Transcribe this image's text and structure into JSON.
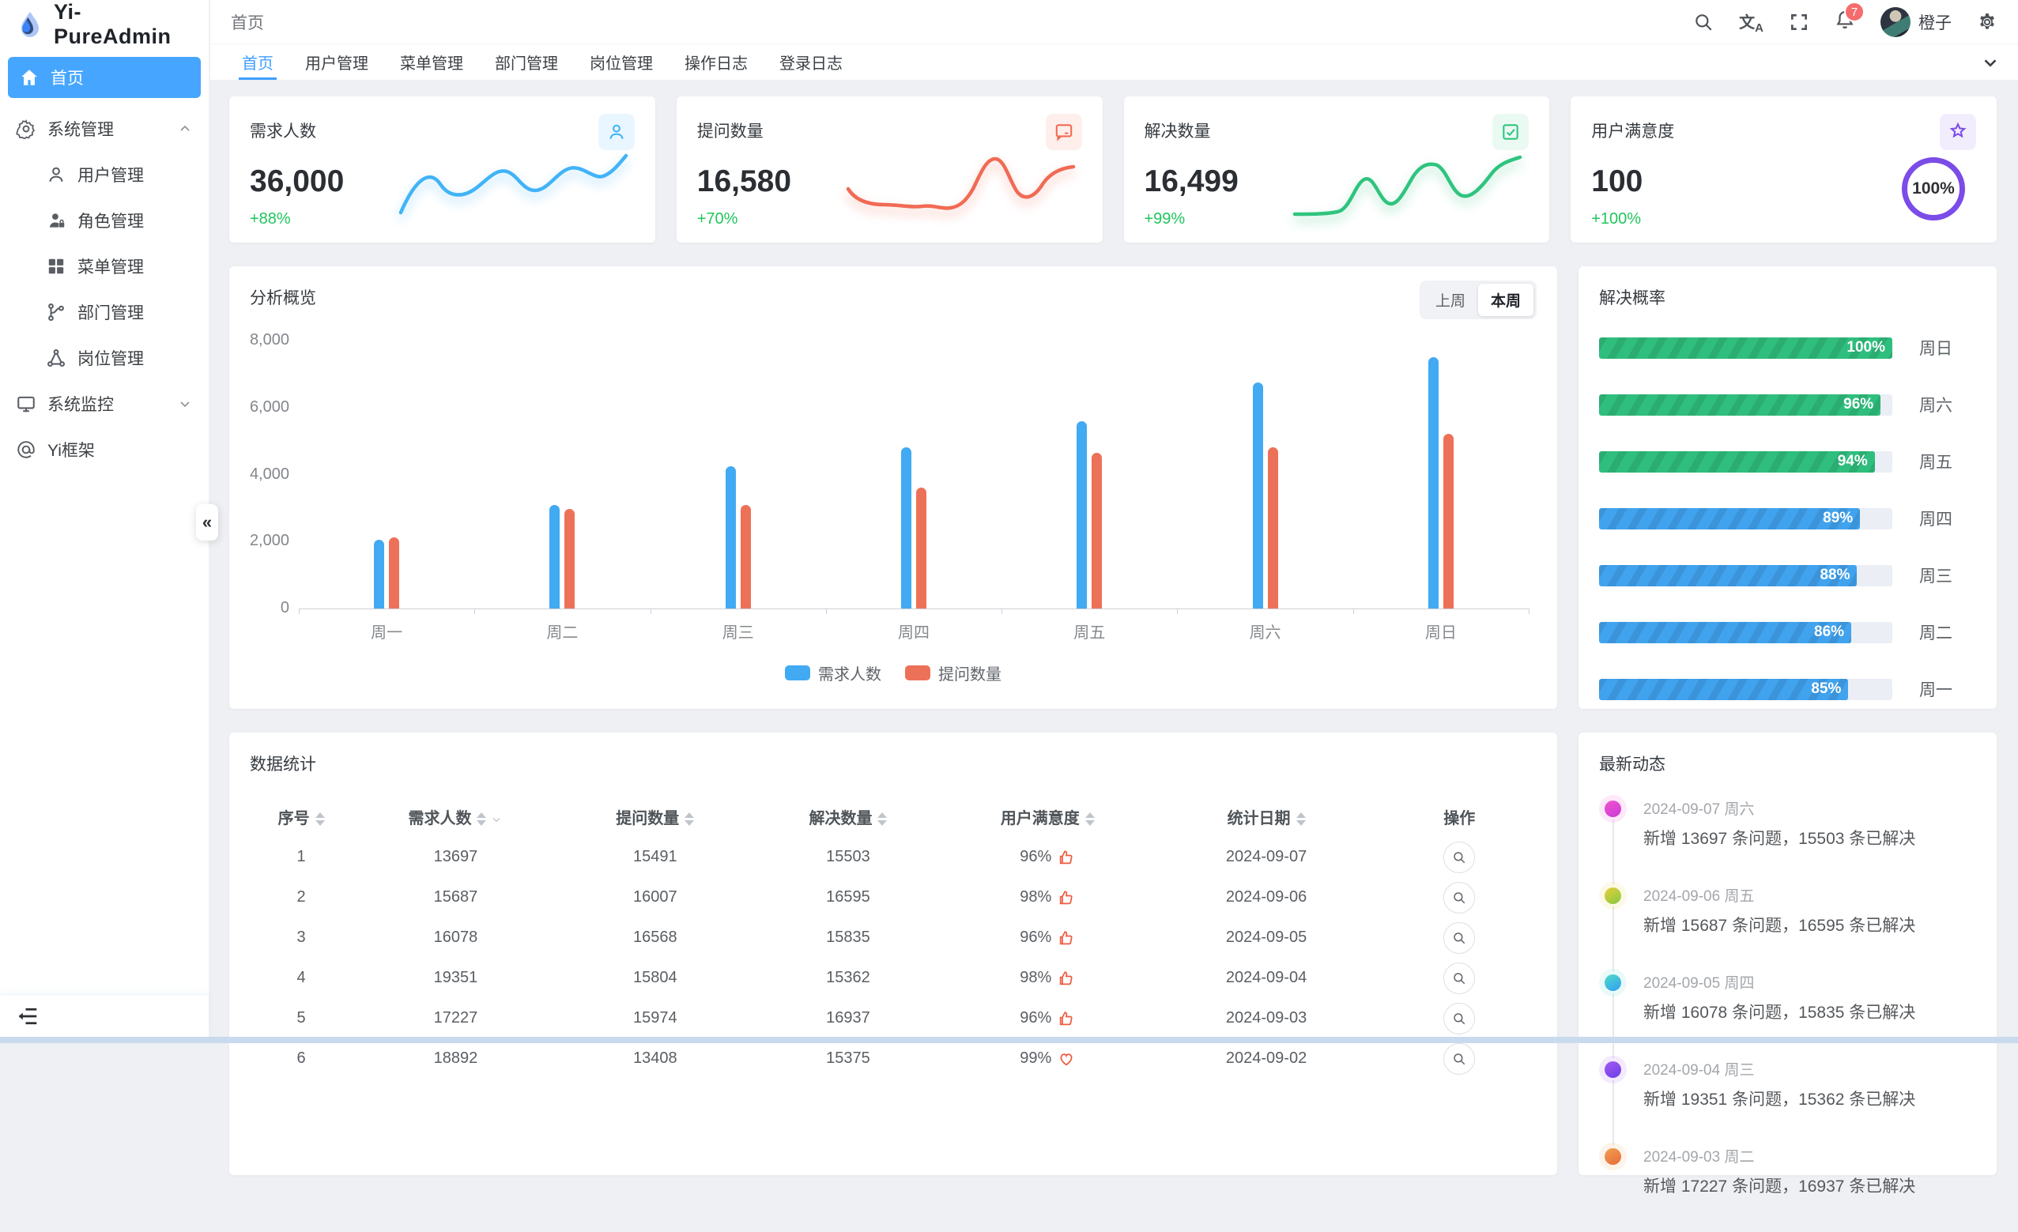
{
  "app": {
    "title": "Yi-PureAdmin"
  },
  "header": {
    "breadcrumb": "首页",
    "notification_count": "7",
    "username": "橙子"
  },
  "tabs": {
    "items": [
      "首页",
      "用户管理",
      "菜单管理",
      "部门管理",
      "岗位管理",
      "操作日志",
      "登录日志"
    ],
    "active_index": 0
  },
  "sidebar": {
    "items": [
      {
        "label": "首页",
        "icon": "home",
        "active": true
      },
      {
        "label": "系统管理",
        "icon": "gear",
        "arrow": "up",
        "children": [
          {
            "label": "用户管理",
            "icon": "user"
          },
          {
            "label": "角色管理",
            "icon": "role"
          },
          {
            "label": "菜单管理",
            "icon": "grid"
          },
          {
            "label": "部门管理",
            "icon": "dept"
          },
          {
            "label": "岗位管理",
            "icon": "post"
          }
        ]
      },
      {
        "label": "系统监控",
        "icon": "monitor",
        "arrow": "down",
        "children": []
      },
      {
        "label": "Yi框架",
        "icon": "at",
        "children": []
      }
    ]
  },
  "stat_cards": [
    {
      "title": "需求人数",
      "value": "36,000",
      "delta": "+88%",
      "icon": "user",
      "accent": "#41b3f7",
      "icon_bg": "#e9f6ff",
      "trend": "spark",
      "spark": "wave1"
    },
    {
      "title": "提问数量",
      "value": "16,580",
      "delta": "+70%",
      "icon": "chat",
      "accent": "#f16a54",
      "icon_bg": "#feefec",
      "trend": "spark",
      "spark": "wave2"
    },
    {
      "title": "解决数量",
      "value": "16,499",
      "delta": "+99%",
      "icon": "check",
      "accent": "#2fc47e",
      "icon_bg": "#eafaf2",
      "trend": "spark",
      "spark": "wave3"
    },
    {
      "title": "用户满意度",
      "value": "100",
      "delta": "+100%",
      "icon": "star",
      "accent": "#7b4ce8",
      "icon_bg": "#f2edfd",
      "trend": "ring",
      "ring_label": "100%"
    }
  ],
  "delta_color": "#21c55d",
  "chart_data": [
    {
      "type": "bar",
      "title": "分析概览",
      "toggle": {
        "options": [
          "上周",
          "本周"
        ],
        "active_index": 1
      },
      "categories": [
        "周一",
        "周二",
        "周三",
        "周四",
        "周五",
        "周六",
        "周日"
      ],
      "series": [
        {
          "name": "需求人数",
          "color": "#41aaf2",
          "values": [
            2050,
            3100,
            4250,
            4820,
            5600,
            6760,
            7500
          ]
        },
        {
          "name": "提问数量",
          "color": "#ed7158",
          "values": [
            2120,
            2970,
            3090,
            3610,
            4660,
            4820,
            5220
          ]
        }
      ],
      "ylim": [
        0,
        8000
      ],
      "yticks": [
        "0",
        "2,000",
        "4,000",
        "6,000",
        "8,000"
      ],
      "grid": false,
      "legend_position": "bottom"
    },
    {
      "type": "bar",
      "orientation": "horizontal",
      "title": "解决概率",
      "categories": [
        "周日",
        "周六",
        "周五",
        "周四",
        "周三",
        "周二",
        "周一"
      ],
      "values": [
        100,
        96,
        94,
        89,
        88,
        86,
        85
      ],
      "value_labels": [
        "100%",
        "96%",
        "94%",
        "89%",
        "88%",
        "86%",
        "85%"
      ],
      "bar_colors": [
        "green",
        "green",
        "green",
        "blue",
        "blue",
        "blue",
        "blue"
      ],
      "palette": {
        "green": "#2fbe7d",
        "blue": "#41a3ee",
        "track": "#ebeef5"
      },
      "xlim": [
        0,
        100
      ]
    }
  ],
  "table": {
    "title": "数据统计",
    "headers": [
      {
        "label": "序号",
        "sort": true
      },
      {
        "label": "需求人数",
        "sort": true,
        "filter": true
      },
      {
        "label": "提问数量",
        "sort": true
      },
      {
        "label": "解决数量",
        "sort": true
      },
      {
        "label": "用户满意度",
        "sort": true
      },
      {
        "label": "统计日期",
        "sort": true
      },
      {
        "label": "操作",
        "sort": false
      }
    ],
    "rows": [
      {
        "no": "1",
        "demand": "13697",
        "question": "15491",
        "solved": "15503",
        "satisfaction": "96%",
        "sat_icon": "thumb",
        "date": "2024-09-07"
      },
      {
        "no": "2",
        "demand": "15687",
        "question": "16007",
        "solved": "16595",
        "satisfaction": "98%",
        "sat_icon": "thumb",
        "date": "2024-09-06"
      },
      {
        "no": "3",
        "demand": "16078",
        "question": "16568",
        "solved": "15835",
        "satisfaction": "96%",
        "sat_icon": "thumb",
        "date": "2024-09-05"
      },
      {
        "no": "4",
        "demand": "19351",
        "question": "15804",
        "solved": "15362",
        "satisfaction": "98%",
        "sat_icon": "thumb",
        "date": "2024-09-04"
      },
      {
        "no": "5",
        "demand": "17227",
        "question": "15974",
        "solved": "16937",
        "satisfaction": "96%",
        "sat_icon": "thumb",
        "date": "2024-09-03"
      },
      {
        "no": "6",
        "demand": "18892",
        "question": "13408",
        "solved": "15375",
        "satisfaction": "99%",
        "sat_icon": "heart",
        "date": "2024-09-02"
      }
    ]
  },
  "timeline": {
    "title": "最新动态",
    "items": [
      {
        "date": "2024-09-07 周六",
        "text": "新增 13697 条问题，15503 条已解决",
        "dot": [
          "#f055cf",
          "#c93bd4"
        ]
      },
      {
        "date": "2024-09-06 周五",
        "text": "新增 15687 条问题，16595 条已解决",
        "dot": [
          "#e7cf3c",
          "#86c940"
        ]
      },
      {
        "date": "2024-09-05 周四",
        "text": "新增 16078 条问题，15835 条已解决",
        "dot": [
          "#52dcc9",
          "#2f9df2"
        ]
      },
      {
        "date": "2024-09-04 周三",
        "text": "新增 19351 条问题，15362 条已解决",
        "dot": [
          "#a55bf0",
          "#6a3de8"
        ]
      },
      {
        "date": "2024-09-03 周二",
        "text": "新增 17227 条问题，16937 条已解决",
        "dot": [
          "#f0a04f",
          "#e86a3d"
        ]
      }
    ]
  }
}
